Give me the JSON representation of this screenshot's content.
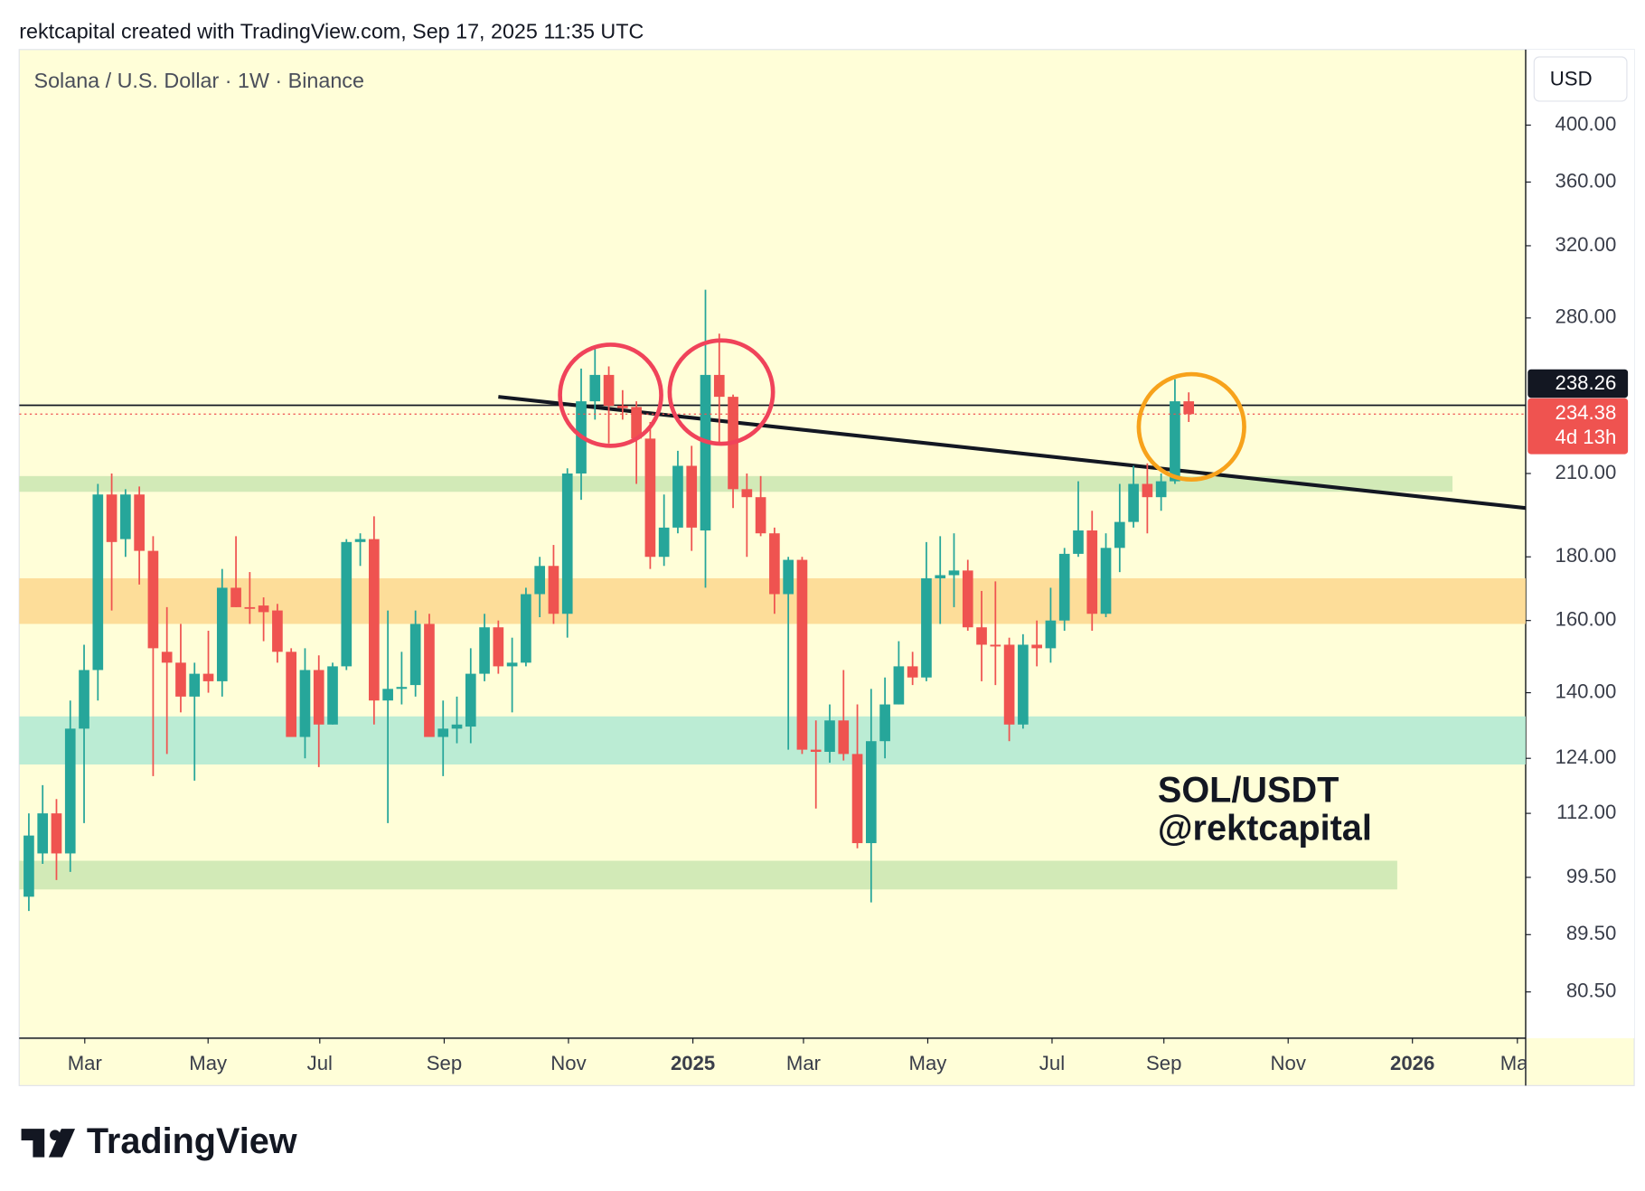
{
  "header": "rektcapital created with TradingView.com, Sep 17, 2025 11:35 UTC",
  "footer_logo": "TradingView",
  "chart_data": {
    "type": "candlestick",
    "title": "Solana / U.S. Dollar · 1W · Binance",
    "currency": "USD",
    "up_color": "#26a69a",
    "down_color": "#ef5350",
    "open": [
      96,
      104,
      112,
      104,
      131,
      146,
      202,
      186,
      202,
      182,
      151,
      148,
      139,
      145,
      143,
      170,
      164,
      164.5,
      163,
      151,
      129,
      146,
      132,
      147,
      185,
      186,
      138,
      141,
      142,
      159,
      129,
      131,
      131.5,
      145,
      158,
      147,
      148,
      168,
      177,
      162,
      210,
      240,
      252,
      238,
      237.5,
      224,
      180,
      190,
      213,
      189,
      252,
      242,
      204,
      201,
      188,
      168,
      179,
      126,
      125.5,
      133,
      125,
      106,
      128,
      137,
      147,
      144,
      173,
      174,
      175.5,
      158,
      153,
      153,
      132,
      153,
      152,
      160,
      181,
      189,
      162,
      183,
      192,
      206,
      201,
      207,
      240
    ],
    "high": [
      112,
      118,
      115,
      138,
      153,
      206,
      210,
      204,
      205,
      187,
      164,
      159,
      148,
      157,
      176,
      187,
      175,
      167,
      165,
      152,
      152,
      150,
      148,
      186,
      188,
      194,
      163,
      151,
      163,
      162,
      138,
      139,
      152,
      162,
      160,
      155,
      170,
      180,
      184,
      212,
      255,
      265,
      256,
      245,
      240,
      231,
      202,
      219,
      221,
      295,
      272,
      243,
      210,
      209,
      190,
      180,
      180,
      133,
      137,
      146,
      137,
      141,
      144,
      154,
      151,
      185,
      187,
      188,
      179,
      169,
      172,
      155,
      156,
      160,
      170,
      183,
      207,
      196,
      188,
      206,
      213,
      214,
      210,
      250,
      244
    ],
    "low": [
      93.5,
      102,
      99,
      100.5,
      110,
      138,
      163,
      180,
      171,
      120,
      125,
      135,
      119,
      140,
      139,
      164,
      159,
      154,
      148,
      129,
      124,
      122,
      132,
      146,
      177,
      132,
      110,
      137,
      139,
      129,
      120,
      127.5,
      127.5,
      143,
      145,
      135,
      147,
      161,
      159,
      155,
      200,
      232,
      222,
      232,
      206,
      176,
      177,
      188,
      182,
      170,
      222,
      197,
      180,
      187,
      162,
      126,
      125,
      113,
      123,
      123.5,
      105,
      95,
      124,
      137,
      142,
      143,
      159,
      164,
      157,
      143,
      142,
      128,
      131,
      147,
      148,
      157,
      180,
      157,
      161,
      175,
      190,
      188,
      196,
      206,
      231
    ],
    "close": [
      107.5,
      112,
      104,
      131,
      146,
      202,
      185,
      202,
      182,
      152,
      148,
      139,
      145,
      143,
      170,
      164,
      163.5,
      162.5,
      151,
      129,
      146,
      132,
      147,
      185,
      186,
      138,
      141,
      141.5,
      159,
      129,
      131,
      132,
      145,
      158,
      147,
      148,
      168,
      177,
      162,
      210,
      240,
      252,
      238,
      237,
      224,
      180,
      190,
      213,
      190,
      252,
      242,
      204,
      201,
      188,
      168,
      179,
      126,
      125.5,
      133,
      125,
      106,
      128,
      137,
      147,
      144,
      173,
      174,
      175.5,
      158,
      153,
      152.5,
      132,
      153,
      152,
      160,
      181,
      189,
      162,
      183,
      192,
      206,
      201,
      207,
      240,
      234.38
    ],
    "log_scale": true,
    "grid": false,
    "ylim": [
      73.9,
      460
    ],
    "yticks": [
      {
        "value": 80.5,
        "label": "80.50"
      },
      {
        "value": 89.5,
        "label": "89.50"
      },
      {
        "value": 99.5,
        "label": "99.50"
      },
      {
        "value": 112,
        "label": "112.00"
      },
      {
        "value": 124,
        "label": "124.00"
      },
      {
        "value": 140,
        "label": "140.00"
      },
      {
        "value": 160,
        "label": "160.00"
      },
      {
        "value": 180,
        "label": "180.00"
      },
      {
        "value": 210,
        "label": "210.00"
      },
      {
        "value": 280,
        "label": "280.00"
      },
      {
        "value": 320,
        "label": "320.00"
      },
      {
        "value": 360,
        "label": "360.00"
      },
      {
        "value": 400,
        "label": "400.00"
      }
    ],
    "xlim": [
      -0.7,
      108.4
    ],
    "xticks": [
      {
        "value": 4.05,
        "label": "Mar"
      },
      {
        "value": 12.98,
        "label": "May"
      },
      {
        "value": 21.07,
        "label": "Jul"
      },
      {
        "value": 30.08,
        "label": "Sep"
      },
      {
        "value": 39.08,
        "label": "Nov"
      },
      {
        "value": 48.09,
        "label": "2025"
      },
      {
        "value": 56.1,
        "label": "Mar"
      },
      {
        "value": 65.1,
        "label": "May"
      },
      {
        "value": 74.1,
        "label": "Jul"
      },
      {
        "value": 82.2,
        "label": "Sep"
      },
      {
        "value": 91.2,
        "label": "Nov"
      },
      {
        "value": 100.2,
        "label": "2026"
      },
      {
        "value": 107.8,
        "label": "Mar"
      }
    ],
    "hline": {
      "value": 238.26,
      "color": "#131722"
    },
    "countdown": "4d 13h",
    "zones": [
      {
        "low": 203,
        "high": 209,
        "color": "#cde8b4",
        "end": 103.1
      },
      {
        "low": 159,
        "high": 173,
        "color": "#fdd992"
      },
      {
        "low": 122.6,
        "high": 134,
        "color": "#b4ead4"
      },
      {
        "low": 97.3,
        "high": 102.6,
        "color": "#cde8b4",
        "end": 99.1
      }
    ],
    "trendline": {
      "x": [
        34,
        108.4
      ],
      "y": [
        242,
        197
      ],
      "color": "#131722"
    },
    "annotation": [
      "SOL/USDT",
      "@rektcapital"
    ]
  }
}
